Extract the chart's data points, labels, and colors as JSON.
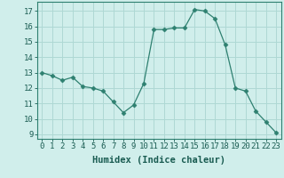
{
  "x": [
    0,
    1,
    2,
    3,
    4,
    5,
    6,
    7,
    8,
    9,
    10,
    11,
    12,
    13,
    14,
    15,
    16,
    17,
    18,
    19,
    20,
    21,
    22,
    23
  ],
  "y": [
    13.0,
    12.8,
    12.5,
    12.7,
    12.1,
    12.0,
    11.8,
    11.1,
    10.4,
    10.9,
    12.3,
    15.8,
    15.8,
    15.9,
    15.9,
    17.1,
    17.0,
    16.5,
    14.8,
    12.0,
    11.8,
    10.5,
    9.8,
    9.1
  ],
  "line_color": "#2e8070",
  "marker": "D",
  "marker_size": 2.5,
  "bg_color": "#d0eeeb",
  "grid_color": "#aed8d4",
  "xlabel": "Humidex (Indice chaleur)",
  "ylabel_ticks": [
    9,
    10,
    11,
    12,
    13,
    14,
    15,
    16,
    17
  ],
  "xlim": [
    -0.5,
    23.5
  ],
  "ylim": [
    8.7,
    17.6
  ],
  "tick_label_color": "#1a5c52",
  "axis_color": "#2e8070",
  "xlabel_fontsize": 7.5,
  "tick_fontsize": 6.5
}
